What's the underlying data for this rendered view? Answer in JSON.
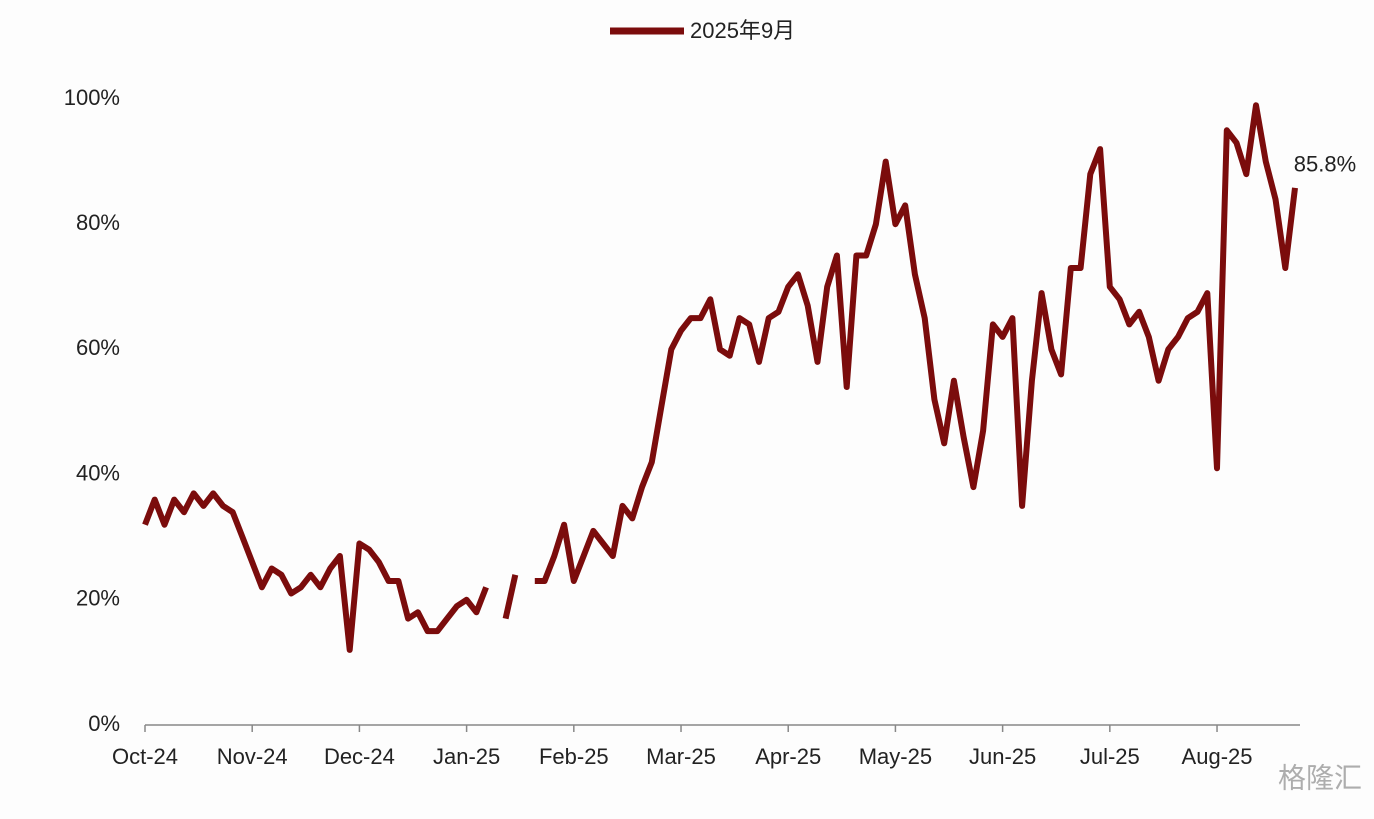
{
  "chart_data": {
    "type": "line",
    "categories": [
      "Oct-24",
      null,
      null,
      null,
      null,
      null,
      null,
      null,
      null,
      null,
      null,
      "Nov-24",
      null,
      null,
      null,
      null,
      null,
      null,
      null,
      null,
      null,
      null,
      "Dec-24",
      null,
      null,
      null,
      null,
      null,
      null,
      null,
      null,
      null,
      null,
      "Jan-25",
      null,
      null,
      null,
      null,
      null,
      null,
      null,
      null,
      null,
      null,
      "Feb-25",
      null,
      null,
      null,
      null,
      null,
      null,
      null,
      null,
      null,
      null,
      "Mar-25",
      null,
      null,
      null,
      null,
      null,
      null,
      null,
      null,
      null,
      null,
      "Apr-25",
      null,
      null,
      null,
      null,
      null,
      null,
      null,
      null,
      null,
      null,
      "May-25",
      null,
      null,
      null,
      null,
      null,
      null,
      null,
      null,
      null,
      null,
      "Jun-25",
      null,
      null,
      null,
      null,
      null,
      null,
      null,
      null,
      null,
      null,
      "Jul-25",
      null,
      null,
      null,
      null,
      null,
      null,
      null,
      null,
      null,
      null,
      "Aug-25",
      null,
      null,
      null,
      null,
      null,
      null,
      null,
      null
    ],
    "series": [
      {
        "name": "2025年9月",
        "color": "#7b0c0c",
        "values": [
          32,
          36,
          32,
          36,
          34,
          37,
          35,
          37,
          35,
          34,
          30,
          26,
          22,
          25,
          24,
          21,
          22,
          24,
          22,
          25,
          27,
          12,
          29,
          28,
          26,
          23,
          23,
          17,
          18,
          15,
          15,
          17,
          19,
          20,
          18,
          22,
          null,
          17,
          24,
          null,
          23,
          23,
          27,
          32,
          23,
          27,
          31,
          29,
          27,
          35,
          33,
          38,
          42,
          51,
          60,
          63,
          65,
          65,
          68,
          60,
          59,
          65,
          64,
          58,
          65,
          66,
          70,
          72,
          67,
          58,
          70,
          75,
          54,
          75,
          75,
          80,
          90,
          80,
          83,
          72,
          65,
          52,
          45,
          55,
          46,
          38,
          47,
          64,
          62,
          65,
          35,
          55,
          69,
          60,
          56,
          73,
          73,
          88,
          92,
          70,
          68,
          64,
          66,
          62,
          55,
          60,
          62,
          65,
          66,
          69,
          41,
          95,
          93,
          88,
          99,
          90,
          84,
          73,
          85.8
        ],
        "value_labels": [
          null,
          null,
          null,
          null,
          null,
          null,
          null,
          null,
          null,
          null,
          null,
          null,
          null,
          null,
          null,
          null,
          null,
          null,
          null,
          null,
          null,
          null,
          null,
          null,
          null,
          null,
          null,
          null,
          null,
          null,
          null,
          null,
          null,
          null,
          null,
          null,
          null,
          null,
          null,
          null,
          null,
          null,
          null,
          null,
          null,
          null,
          null,
          null,
          null,
          null,
          null,
          null,
          null,
          null,
          null,
          null,
          null,
          null,
          null,
          null,
          null,
          null,
          null,
          null,
          null,
          null,
          null,
          null,
          null,
          null,
          null,
          null,
          null,
          null,
          null,
          null,
          null,
          null,
          null,
          null,
          null,
          null,
          null,
          null,
          null,
          null,
          null,
          null,
          null,
          null,
          null,
          null,
          null,
          null,
          null,
          null,
          null,
          null,
          null,
          null,
          null,
          null,
          null,
          null,
          null,
          null,
          null,
          null,
          null,
          null,
          null,
          null,
          null,
          null,
          null,
          null,
          null,
          null,
          "85.8%"
        ]
      }
    ],
    "ylim": [
      0,
      100
    ],
    "yticks": [
      {
        "value": 0,
        "label": "0%"
      },
      {
        "value": 20,
        "label": "20%"
      },
      {
        "value": 40,
        "label": "40%"
      },
      {
        "value": 60,
        "label": "60%"
      },
      {
        "value": 80,
        "label": "80%"
      },
      {
        "value": 100,
        "label": "100%"
      }
    ],
    "legend": "top",
    "watermark": "格隆汇"
  }
}
